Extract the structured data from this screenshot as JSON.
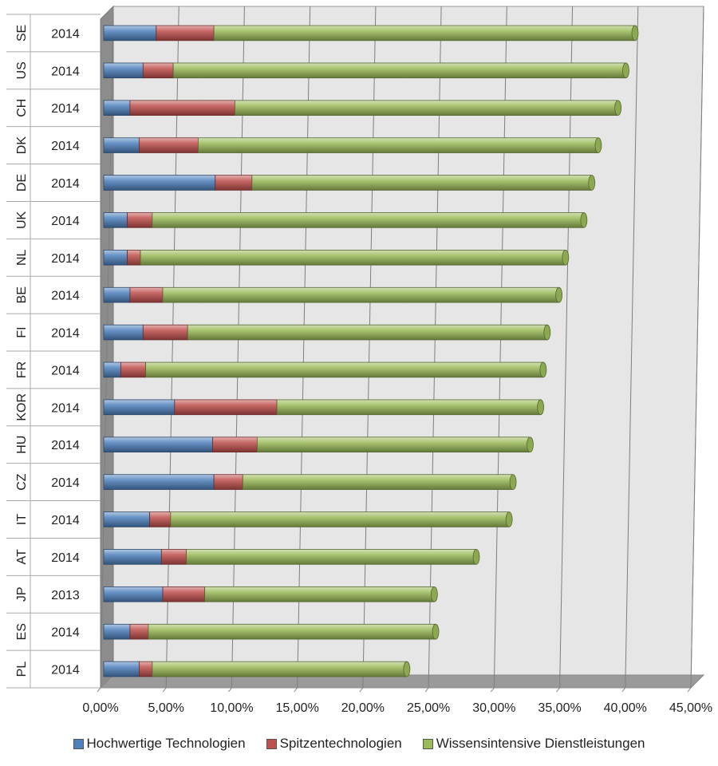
{
  "chart_data": {
    "type": "bar",
    "orientation": "horizontal",
    "stacked": true,
    "categories": [
      {
        "country": "SE",
        "year": "2014"
      },
      {
        "country": "US",
        "year": "2014"
      },
      {
        "country": "CH",
        "year": "2014"
      },
      {
        "country": "DK",
        "year": "2014"
      },
      {
        "country": "DE",
        "year": "2014"
      },
      {
        "country": "UK",
        "year": "2014"
      },
      {
        "country": "NL",
        "year": "2014"
      },
      {
        "country": "BE",
        "year": "2014"
      },
      {
        "country": "FI",
        "year": "2014"
      },
      {
        "country": "FR",
        "year": "2014"
      },
      {
        "country": "KOR",
        "year": "2014"
      },
      {
        "country": "HU",
        "year": "2014"
      },
      {
        "country": "CZ",
        "year": "2014"
      },
      {
        "country": "IT",
        "year": "2014"
      },
      {
        "country": "AT",
        "year": "2014"
      },
      {
        "country": "JP",
        "year": "2013"
      },
      {
        "country": "ES",
        "year": "2014"
      },
      {
        "country": "PL",
        "year": "2014"
      }
    ],
    "series": [
      {
        "name": "Hochwertige Technologien",
        "color": "#4f81bd",
        "values": [
          4.0,
          3.0,
          2.0,
          2.7,
          8.5,
          1.8,
          1.8,
          2.0,
          3.0,
          1.3,
          5.4,
          8.3,
          8.4,
          3.5,
          4.4,
          4.5,
          2.0,
          2.7
        ]
      },
      {
        "name": "Spitzentechnologien",
        "color": "#c0504d",
        "values": [
          4.4,
          2.3,
          8.0,
          4.5,
          2.8,
          1.9,
          1.0,
          2.5,
          3.4,
          1.9,
          7.8,
          3.4,
          2.2,
          1.6,
          1.9,
          3.2,
          1.4,
          1.0
        ]
      },
      {
        "name": "Wissensintensive Dienstleistungen",
        "color": "#9bbb59",
        "values": [
          32.1,
          34.5,
          29.2,
          30.5,
          25.9,
          32.9,
          32.4,
          30.2,
          27.4,
          30.3,
          20.1,
          20.8,
          20.6,
          25.8,
          22.1,
          17.5,
          21.9,
          19.4
        ]
      }
    ],
    "xlim": [
      0,
      45
    ],
    "ticks": [
      "0,00%",
      "5,00%",
      "10,00%",
      "15,00%",
      "20,00%",
      "25,00%",
      "30,00%",
      "35,00%",
      "40,00%",
      "45,00%"
    ],
    "tick_values": [
      0,
      5,
      10,
      15,
      20,
      25,
      30,
      35,
      40,
      45
    ],
    "grid": true,
    "legend_position": "bottom",
    "title": "",
    "xlabel": "",
    "ylabel": ""
  }
}
